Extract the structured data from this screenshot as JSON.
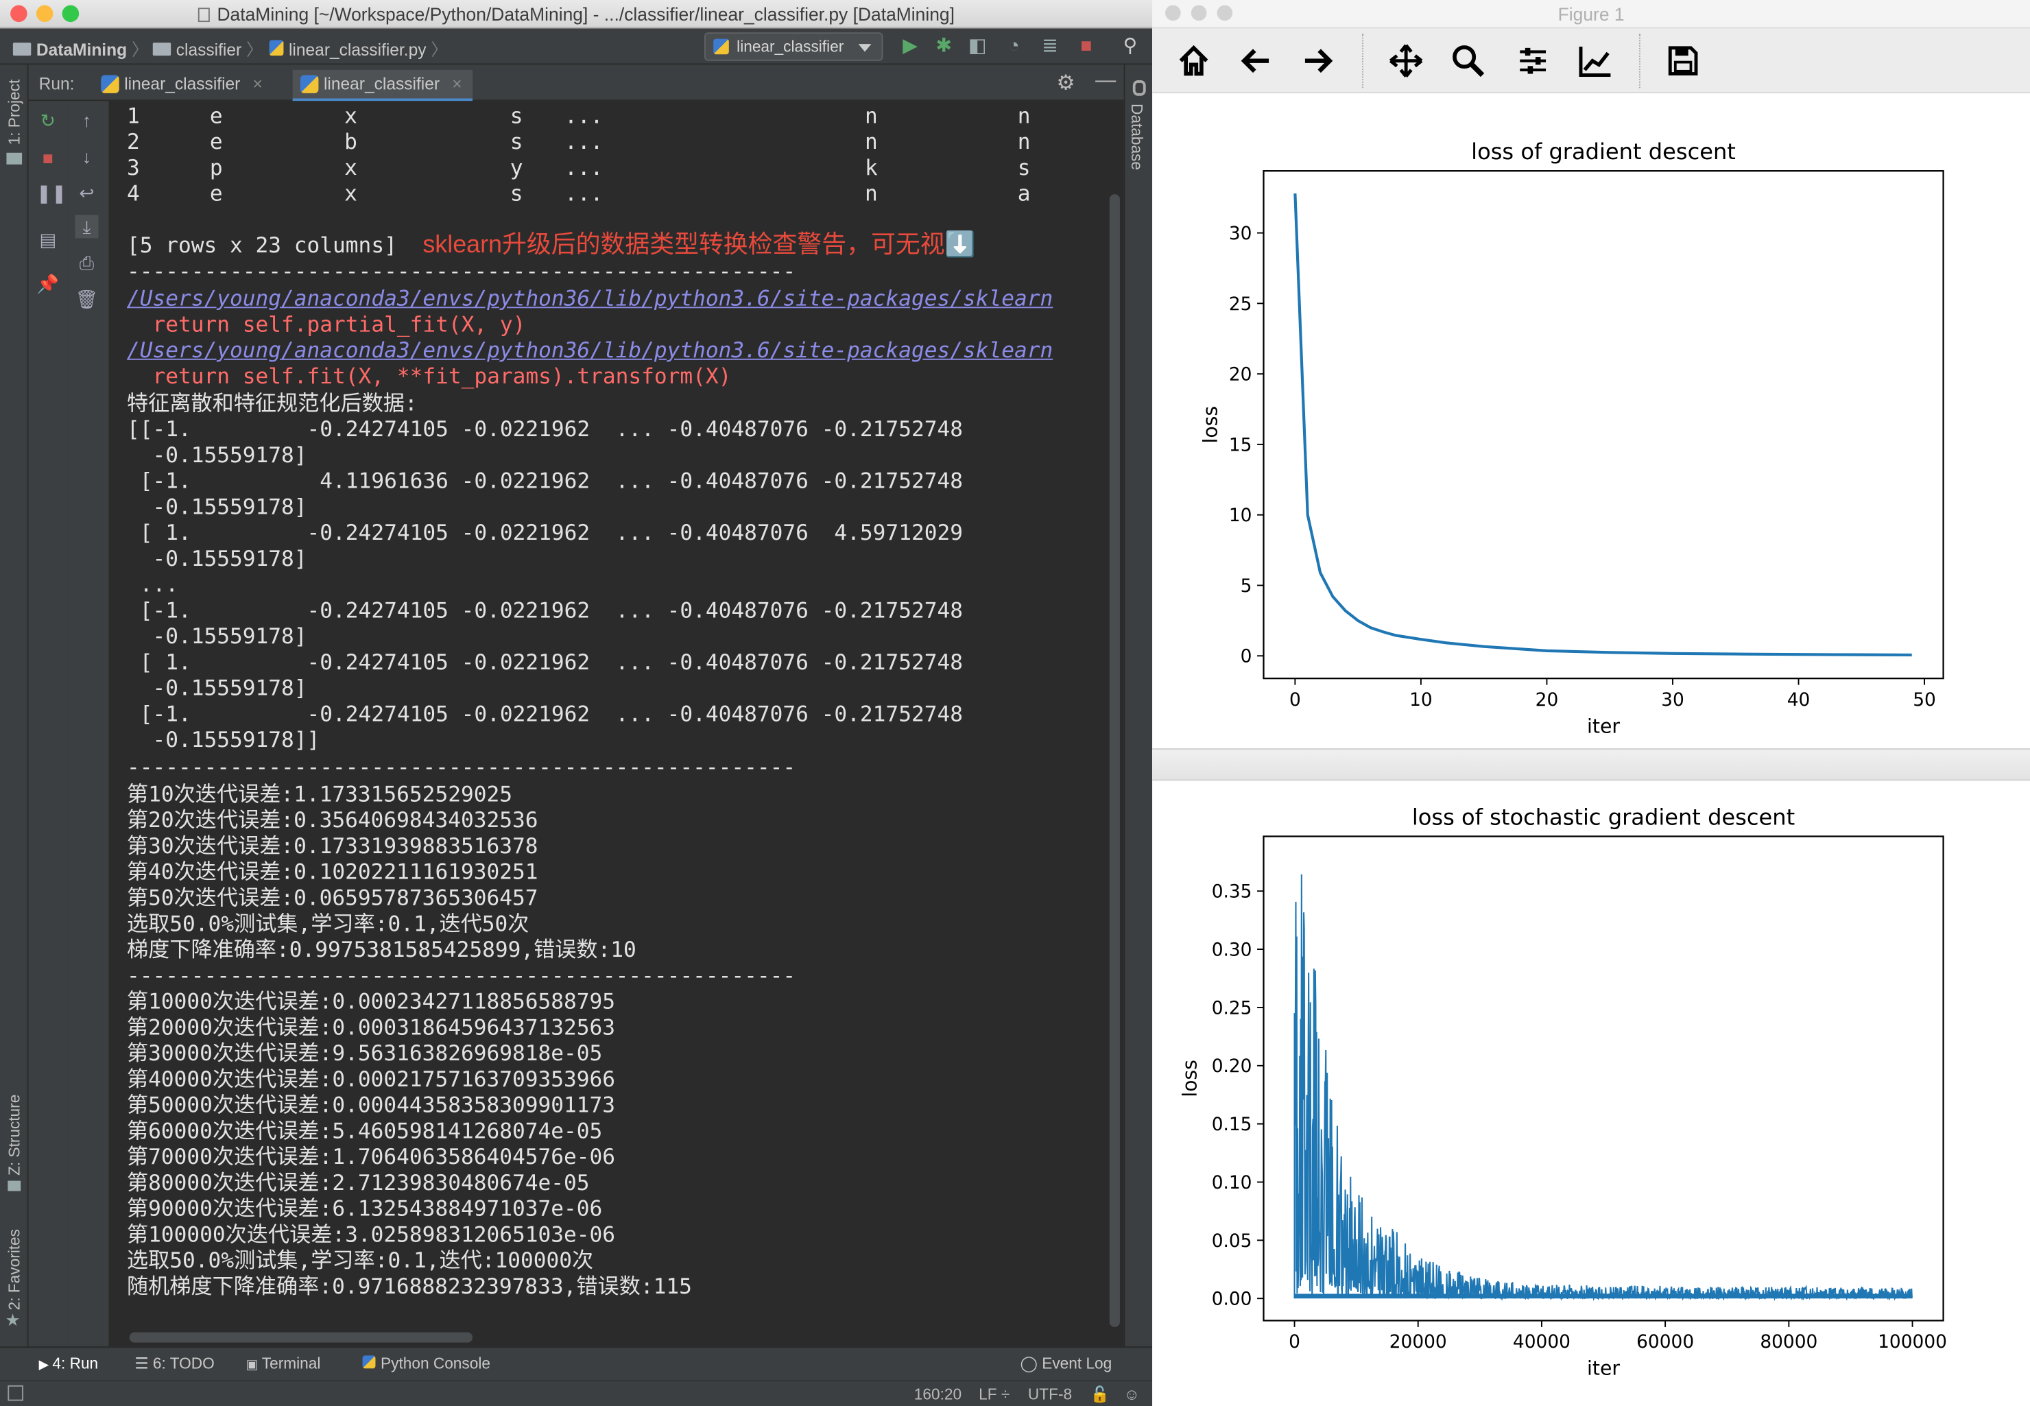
{
  "ide": {
    "window_title": "DataMining [~/Workspace/Python/DataMining] - .../classifier/linear_classifier.py [DataMining]",
    "breadcrumbs": [
      "DataMining",
      "classifier",
      "linear_classifier.py"
    ],
    "run_config": "linear_classifier",
    "run_label": "Run:",
    "run_tabs": [
      "linear_classifier",
      "linear_classifier"
    ],
    "left_tool_windows": [
      "1: Project",
      "Z: Structure",
      "2: Favorites"
    ],
    "right_tool_windows": [
      "Database"
    ],
    "bottom_tabs": [
      "4: Run",
      "6: TODO",
      "Terminal",
      "Python Console"
    ],
    "event_log": "Event Log",
    "status": {
      "position": "160:20",
      "line_sep": "LF ÷",
      "encoding": "UTF-8"
    },
    "annotation": "sklearn升级后的数据类型转换检查警告，可无视⬇️",
    "console": {
      "table_rows": [
        {
          "idx": "1",
          "c1": "e",
          "c2": "x",
          "c3": "s",
          "dots": "...",
          "c4": "n",
          "c5": "n"
        },
        {
          "idx": "2",
          "c1": "e",
          "c2": "b",
          "c3": "s",
          "dots": "...",
          "c4": "n",
          "c5": "n"
        },
        {
          "idx": "3",
          "c1": "p",
          "c2": "x",
          "c3": "y",
          "dots": "...",
          "c4": "k",
          "c5": "s"
        },
        {
          "idx": "4",
          "c1": "e",
          "c2": "x",
          "c3": "s",
          "dots": "...",
          "c4": "n",
          "c5": "a"
        }
      ],
      "shape_line": "[5 rows x 23 columns]",
      "separator": "----------------------------------------------------",
      "warn_path_1": "/Users/young/anaconda3/envs/python36/lib/python3.6/site-packages/sklearn",
      "warn_code_1": "  return self.partial_fit(X, y)",
      "warn_path_2": "/Users/young/anaconda3/envs/python36/lib/python3.6/site-packages/sklearn",
      "warn_code_2": "  return self.fit(X, **fit_params).transform(X)",
      "matrix_header": "特征离散和特征规范化后数据:",
      "matrix_lines": [
        "[[-1.         -0.24274105 -0.0221962  ... -0.40487076 -0.21752748",
        "  -0.15559178]",
        " [-1.          4.11961636 -0.0221962  ... -0.40487076 -0.21752748",
        "  -0.15559178]",
        " [ 1.         -0.24274105 -0.0221962  ... -0.40487076  4.59712029",
        "  -0.15559178]",
        " ...",
        " [-1.         -0.24274105 -0.0221962  ... -0.40487076 -0.21752748",
        "  -0.15559178]",
        " [ 1.         -0.24274105 -0.0221962  ... -0.40487076 -0.21752748",
        "  -0.15559178]",
        " [-1.         -0.24274105 -0.0221962  ... -0.40487076 -0.21752748",
        "  -0.15559178]]"
      ],
      "gd_lines": [
        "第10次迭代误差:1.173315652529025",
        "第20次迭代误差:0.35640698434032536",
        "第30次迭代误差:0.17331939883516378",
        "第40次迭代误差:0.10202211161930251",
        "第50次迭代误差:0.06595787365306457",
        "选取50.0%测试集,学习率:0.1,迭代50次",
        "梯度下降准确率:0.9975381585425899,错误数:10"
      ],
      "sgd_lines": [
        "第10000次迭代误差:0.00023427118856588795",
        "第20000次迭代误差:0.00031864596437132563",
        "第30000次迭代误差:9.563163826969818e-05",
        "第40000次迭代误差:0.00021757163709353966",
        "第50000次迭代误差:0.00044358358309901173",
        "第60000次迭代误差:5.460598141268074e-05",
        "第70000次迭代误差:1.7064063586404576e-06",
        "第80000次迭代误差:2.71239830480674e-05",
        "第90000次迭代误差:6.132543884971037e-06",
        "第100000次迭代误差:3.025898312065103e-06",
        "选取50.0%测试集,学习率:0.1,迭代:100000次",
        "随机梯度下降准确率:0.9716888232397833,错误数:115"
      ]
    }
  },
  "figure": {
    "window_title": "Figure 1",
    "toolbar": [
      "home-icon",
      "back-icon",
      "forward-icon",
      "pan-icon",
      "zoom-icon",
      "subplots-icon",
      "axes-edit-icon",
      "save-icon"
    ]
  },
  "chart_data": [
    {
      "type": "line",
      "title": "loss of gradient descent",
      "xlabel": "iter",
      "ylabel": "loss",
      "xlim": [
        -2.5,
        51.5
      ],
      "ylim": [
        -1.6,
        34.4
      ],
      "xticks": [
        0,
        10,
        20,
        30,
        40,
        50
      ],
      "yticks": [
        0,
        5,
        10,
        15,
        20,
        25,
        30
      ],
      "color": "#1f77b4",
      "series": [
        {
          "x": [
            0,
            1,
            2,
            3,
            4,
            5,
            6,
            7,
            8,
            10,
            12,
            15,
            20,
            25,
            30,
            35,
            40,
            45,
            49
          ],
          "values": [
            32.8,
            10.0,
            5.9,
            4.2,
            3.2,
            2.5,
            2.0,
            1.7,
            1.45,
            1.17,
            0.92,
            0.66,
            0.36,
            0.24,
            0.17,
            0.13,
            0.1,
            0.08,
            0.066
          ]
        }
      ]
    },
    {
      "type": "line",
      "title": "loss of stochastic gradient descent",
      "xlabel": "iter",
      "ylabel": "loss",
      "xlim": [
        -5000,
        105000
      ],
      "ylim": [
        -0.019,
        0.397
      ],
      "xticks": [
        0,
        20000,
        40000,
        60000,
        80000,
        100000
      ],
      "yticks": [
        0.0,
        0.05,
        0.1,
        0.15,
        0.2,
        0.25,
        0.3,
        0.35
      ],
      "color": "#1f77b4",
      "series": [
        {
          "x": [
            0,
            1000,
            2000,
            3000,
            4000,
            5000,
            6000,
            8000,
            10000,
            12000,
            15000,
            20000,
            25000,
            30000,
            40000,
            50000,
            60000,
            70000,
            80000,
            90000,
            100000
          ],
          "peaks": [
            0.378,
            0.375,
            0.33,
            0.3,
            0.255,
            0.23,
            0.175,
            0.12,
            0.1,
            0.075,
            0.065,
            0.04,
            0.025,
            0.018,
            0.012,
            0.012,
            0.011,
            0.01,
            0.01,
            0.01,
            0.009
          ]
        }
      ]
    }
  ]
}
